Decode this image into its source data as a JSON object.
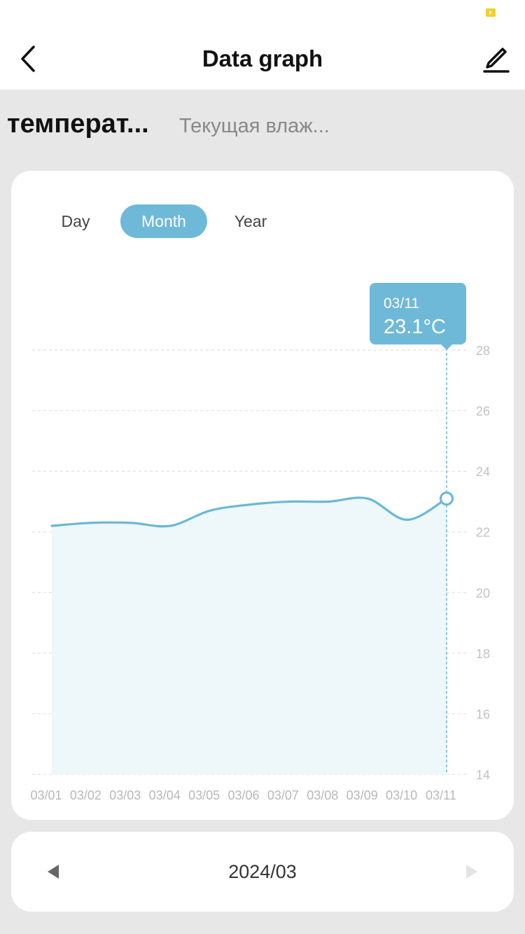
{
  "header": {
    "title": "Data graph"
  },
  "metric_tabs": [
    {
      "label": "температ...",
      "active": true
    },
    {
      "label": "Текущая влаж...",
      "active": false
    }
  ],
  "period_buttons": [
    {
      "label": "Day",
      "selected": false
    },
    {
      "label": "Month",
      "selected": true
    },
    {
      "label": "Year",
      "selected": false
    }
  ],
  "colors": {
    "accent": "#6fb9d8",
    "line": "#6ab8d6",
    "area": "#eef7fa"
  },
  "tooltip": {
    "date": "03/11",
    "value": "23.1°C"
  },
  "chart_data": {
    "type": "area",
    "x": [
      "03/01",
      "03/02",
      "03/03",
      "03/04",
      "03/05",
      "03/06",
      "03/07",
      "03/08",
      "03/09",
      "03/10",
      "03/11"
    ],
    "series": [
      {
        "values": [
          22.2,
          22.3,
          22.3,
          22.2,
          22.7,
          22.9,
          23.0,
          23.0,
          23.1,
          22.4,
          23.1
        ]
      }
    ],
    "yticks": [
      14,
      16,
      18,
      20,
      22,
      24,
      26,
      28
    ],
    "ylim": [
      14,
      28
    ],
    "grid": true,
    "axis_position": "right",
    "selected_index": 10
  },
  "footer": {
    "period": "2024/03"
  }
}
